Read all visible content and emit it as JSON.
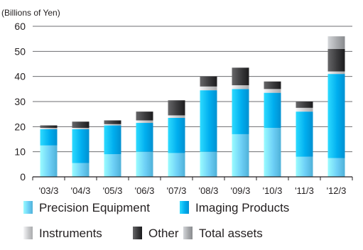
{
  "chart_data": {
    "type": "bar",
    "stacked": true,
    "unit_label": "(Billions of Yen)",
    "categories": [
      "'03/3",
      "'04/3",
      "'05/3",
      "'06/3",
      "'07/3",
      "'08/3",
      "'09/3",
      "'10/3",
      "'11/3",
      "'12/3"
    ],
    "ylim": [
      0,
      60
    ],
    "yticks": [
      "0",
      "10",
      "20",
      "30",
      "40",
      "50",
      "60"
    ],
    "grid": true,
    "legend_position": "bottom",
    "series": [
      {
        "name": "Precision Equipment",
        "color": "#6dcff6",
        "values": [
          12.5,
          5.5,
          9,
          10,
          9.5,
          10,
          17,
          19.5,
          8,
          7.5
        ]
      },
      {
        "name": "Imaging Products",
        "color": "#00aeef",
        "values": [
          6.5,
          13.5,
          11.5,
          11.5,
          14,
          24.5,
          18,
          14,
          18,
          33.5
        ]
      },
      {
        "name": "Instruments",
        "color": "#c8c9cb",
        "values": [
          0.5,
          0.5,
          0.5,
          1,
          1,
          1.5,
          1.5,
          1.5,
          1.5,
          1
        ]
      },
      {
        "name": "Other",
        "color": "#3a3a3c",
        "values": [
          1,
          2.5,
          1.5,
          3.5,
          6,
          4,
          7,
          3,
          2.5,
          9
        ]
      },
      {
        "name": "Total assets",
        "color": "#a7a9ac",
        "values": [
          0,
          0,
          0,
          0,
          0,
          0,
          0,
          0,
          0,
          5
        ]
      }
    ]
  }
}
